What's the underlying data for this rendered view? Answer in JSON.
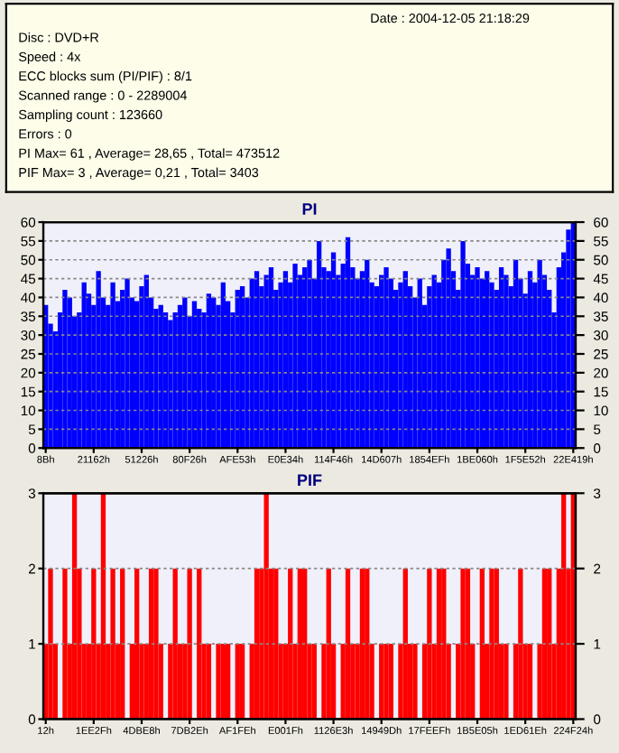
{
  "chart_data": [
    {
      "type": "other",
      "annotations": [
        "Date : 2004-12-05 21:18:29",
        "Disc : DVD+R",
        "Speed : 4x",
        "ECC blocks sum (PI/PIF) : 8/1",
        "Scanned range : 0 - 2289004",
        "Sampling count : 123660",
        "Errors : 0",
        "PI Max= 61 , Average= 28,65 , Total= 473512",
        "PIF Max= 3 , Average= 0,21 , Total= 3403"
      ]
    },
    {
      "type": "bar",
      "title": "PI",
      "color": "#0000ff",
      "grid": "y",
      "ylim": [
        0,
        60
      ],
      "yticks": [
        0,
        5,
        10,
        15,
        20,
        25,
        30,
        35,
        40,
        45,
        50,
        55,
        60
      ],
      "y2lim": [
        0,
        60
      ],
      "y2ticks": [
        0,
        5,
        10,
        15,
        20,
        25,
        30,
        35,
        40,
        45,
        50,
        55,
        60
      ],
      "categories": [
        "8Bh",
        null,
        null,
        null,
        null,
        null,
        null,
        null,
        null,
        null,
        "21162h",
        null,
        null,
        null,
        null,
        null,
        null,
        null,
        null,
        null,
        "51226h",
        null,
        null,
        null,
        null,
        null,
        null,
        null,
        null,
        null,
        "80F26h",
        null,
        null,
        null,
        null,
        null,
        null,
        null,
        null,
        null,
        "AFE53h",
        null,
        null,
        null,
        null,
        null,
        null,
        null,
        null,
        null,
        "E0E34h",
        null,
        null,
        null,
        null,
        null,
        null,
        null,
        null,
        null,
        "114F46h",
        null,
        null,
        null,
        null,
        null,
        null,
        null,
        null,
        null,
        "14D607h",
        null,
        null,
        null,
        null,
        null,
        null,
        null,
        null,
        null,
        "1854EFh",
        null,
        null,
        null,
        null,
        null,
        null,
        null,
        null,
        null,
        "1BE060h",
        null,
        null,
        null,
        null,
        null,
        null,
        null,
        null,
        null,
        "1F5E52h",
        null,
        null,
        null,
        null,
        null,
        null,
        null,
        null,
        null,
        "22E419h"
      ],
      "values": [
        38,
        33,
        31,
        36,
        42,
        40,
        35,
        36,
        44,
        41,
        38,
        47,
        40,
        38,
        44,
        39,
        42,
        45,
        40,
        39,
        43,
        46,
        40,
        37,
        38,
        36,
        34,
        36,
        38,
        40,
        35,
        39,
        37,
        36,
        41,
        40,
        38,
        44,
        39,
        36,
        42,
        43,
        40,
        45,
        47,
        43,
        46,
        48,
        42,
        44,
        47,
        44,
        49,
        46,
        48,
        50,
        45,
        55,
        48,
        47,
        52,
        46,
        49,
        56,
        48,
        45,
        47,
        50,
        44,
        43,
        46,
        48,
        45,
        42,
        44,
        47,
        43,
        40,
        45,
        38,
        43,
        46,
        44,
        50,
        53,
        47,
        42,
        55,
        49,
        46,
        48,
        45,
        47,
        44,
        42,
        48,
        46,
        43,
        50,
        45,
        41,
        47,
        44,
        50,
        46,
        42,
        36,
        48,
        52,
        58,
        60
      ]
    },
    {
      "type": "bar",
      "title": "PIF",
      "color": "#ff0000",
      "grid": "y",
      "ylim": [
        0,
        3
      ],
      "yticks": [
        0,
        1,
        2,
        3
      ],
      "y2lim": [
        0,
        3
      ],
      "y2ticks": [
        0,
        1,
        2,
        3
      ],
      "categories": [
        "12h",
        null,
        null,
        null,
        null,
        null,
        null,
        null,
        null,
        null,
        "1EE2Fh",
        null,
        null,
        null,
        null,
        null,
        null,
        null,
        null,
        null,
        "4DBE8h",
        null,
        null,
        null,
        null,
        null,
        null,
        null,
        null,
        null,
        "7DB2Eh",
        null,
        null,
        null,
        null,
        null,
        null,
        null,
        null,
        null,
        "AF1FEh",
        null,
        null,
        null,
        null,
        null,
        null,
        null,
        null,
        null,
        "E001Fh",
        null,
        null,
        null,
        null,
        null,
        null,
        null,
        null,
        null,
        "1126E3h",
        null,
        null,
        null,
        null,
        null,
        null,
        null,
        null,
        null,
        "14949Dh",
        null,
        null,
        null,
        null,
        null,
        null,
        null,
        null,
        null,
        "17FEEFh",
        null,
        null,
        null,
        null,
        null,
        null,
        null,
        null,
        null,
        "1B5E05h",
        null,
        null,
        null,
        null,
        null,
        null,
        null,
        null,
        null,
        "1ED61Eh",
        null,
        null,
        null,
        null,
        null,
        null,
        null,
        null,
        null,
        "224F24h"
      ],
      "values": [
        1,
        2,
        1,
        0,
        2,
        1,
        3,
        2,
        1,
        1,
        2,
        1,
        3,
        1,
        2,
        1,
        2,
        0,
        1,
        2,
        1,
        1,
        2,
        2,
        1,
        0,
        1,
        2,
        1,
        1,
        2,
        0,
        2,
        1,
        1,
        0,
        1,
        1,
        1,
        0,
        1,
        1,
        0,
        1,
        2,
        2,
        3,
        2,
        2,
        1,
        1,
        2,
        1,
        2,
        2,
        1,
        1,
        0,
        1,
        2,
        1,
        0,
        1,
        2,
        1,
        1,
        2,
        2,
        1,
        0,
        1,
        1,
        1,
        0,
        1,
        2,
        1,
        1,
        0,
        1,
        2,
        1,
        2,
        2,
        1,
        0,
        1,
        2,
        2,
        1,
        0,
        2,
        1,
        2,
        2,
        1,
        1,
        0,
        1,
        2,
        1,
        1,
        0,
        1,
        2,
        2,
        1,
        2,
        3,
        2,
        3
      ]
    }
  ]
}
